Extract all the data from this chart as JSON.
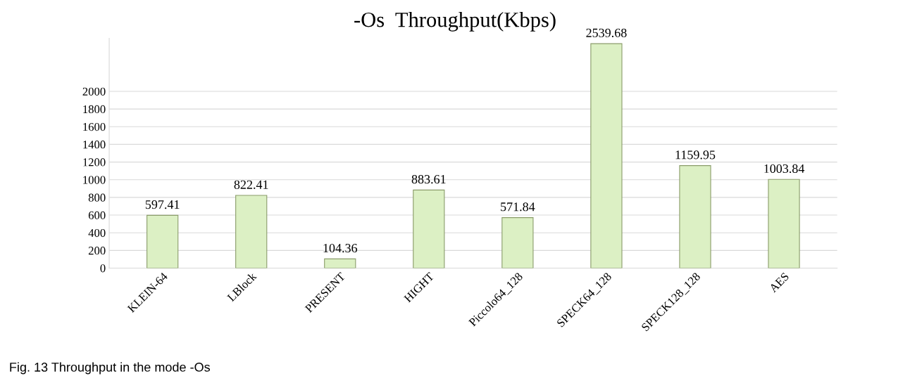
{
  "chart_data": {
    "type": "bar",
    "title": "-Os  Throughput(Kbps)",
    "categories": [
      "KLEIN-64",
      "LBlock",
      "PRESENT",
      "HIGHT",
      "Piccolo64_128",
      "SPECK64_128",
      "SPECK128_128",
      "AES"
    ],
    "values": [
      597.41,
      822.41,
      104.36,
      883.61,
      571.84,
      2539.68,
      1159.95,
      1003.84
    ],
    "color": "#dcf0c4",
    "ylim": [
      0,
      2600
    ],
    "yticks": [
      0,
      200,
      400,
      600,
      800,
      1000,
      1200,
      1400,
      1600,
      1800,
      2000
    ],
    "grid": "y",
    "data_labels": true,
    "annotations": [
      "Fig. 13 Throughput in the mode -Os"
    ]
  }
}
